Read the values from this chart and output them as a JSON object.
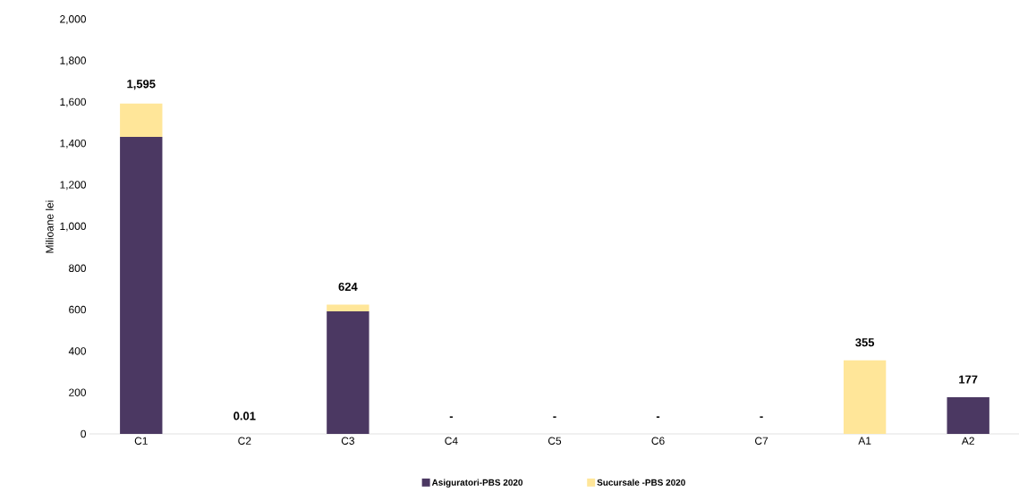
{
  "chart_data": {
    "type": "bar",
    "stacked": true,
    "ylabel": "Milioane lei",
    "categories": [
      "C1",
      "C2",
      "C3",
      "C4",
      "C5",
      "C6",
      "C7",
      "A1",
      "A2"
    ],
    "series": [
      {
        "name": "Asiguratori-PBS 2020",
        "color": "#4b3862",
        "values": [
          1434,
          0.01,
          592,
          0,
          0,
          0,
          0,
          0,
          177
        ]
      },
      {
        "name": "Sucursale -PBS 2020",
        "color": "#ffe699",
        "values": [
          161,
          0,
          32,
          0,
          0,
          0,
          0,
          355,
          0
        ]
      }
    ],
    "totals": [
      "1,595",
      "0.01",
      "624",
      "-",
      "-",
      "-",
      "-",
      "355",
      "177"
    ],
    "ylim": [
      0,
      2000
    ],
    "yticks": [
      0,
      200,
      400,
      600,
      800,
      {
        "value": 1000,
        "label": "1,000"
      },
      {
        "value": 1200,
        "label": "1,200"
      },
      {
        "value": 1400,
        "label": "1,400"
      },
      {
        "value": 1600,
        "label": "1,600"
      },
      {
        "value": 1800,
        "label": "1,800"
      },
      {
        "value": 2000,
        "label": "2,000"
      }
    ],
    "grid": false,
    "legend": "bottom"
  }
}
